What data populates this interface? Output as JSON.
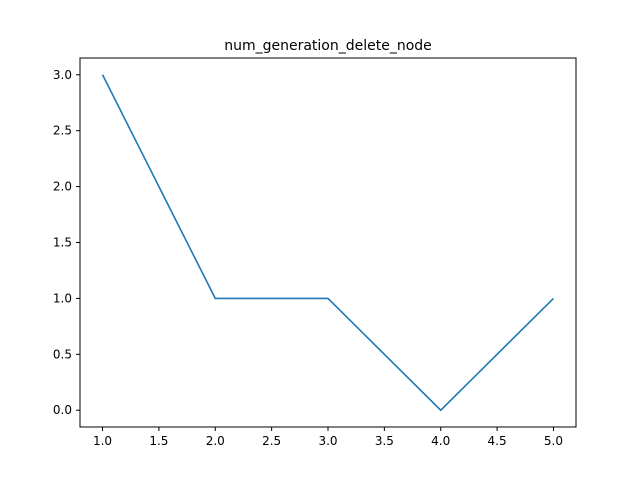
{
  "chart_data": {
    "type": "line",
    "title": "num_generation_delete_node",
    "xlabel": "",
    "ylabel": "",
    "x": [
      1,
      2,
      3,
      4,
      5
    ],
    "series": [
      {
        "values": [
          3,
          1,
          1,
          0,
          1
        ],
        "color": "#1f77b4"
      }
    ],
    "xlim": [
      0.8,
      5.2
    ],
    "ylim": [
      -0.15,
      3.15
    ],
    "xticks": [
      1.0,
      1.5,
      2.0,
      2.5,
      3.0,
      3.5,
      4.0,
      4.5,
      5.0
    ],
    "xtick_labels": [
      "1.0",
      "1.5",
      "2.0",
      "2.5",
      "3.0",
      "3.5",
      "4.0",
      "4.5",
      "5.0"
    ],
    "yticks": [
      0.0,
      0.5,
      1.0,
      1.5,
      2.0,
      2.5,
      3.0
    ],
    "ytick_labels": [
      "0.0",
      "0.5",
      "1.0",
      "1.5",
      "2.0",
      "2.5",
      "3.0"
    ],
    "grid": false,
    "legend": false
  }
}
